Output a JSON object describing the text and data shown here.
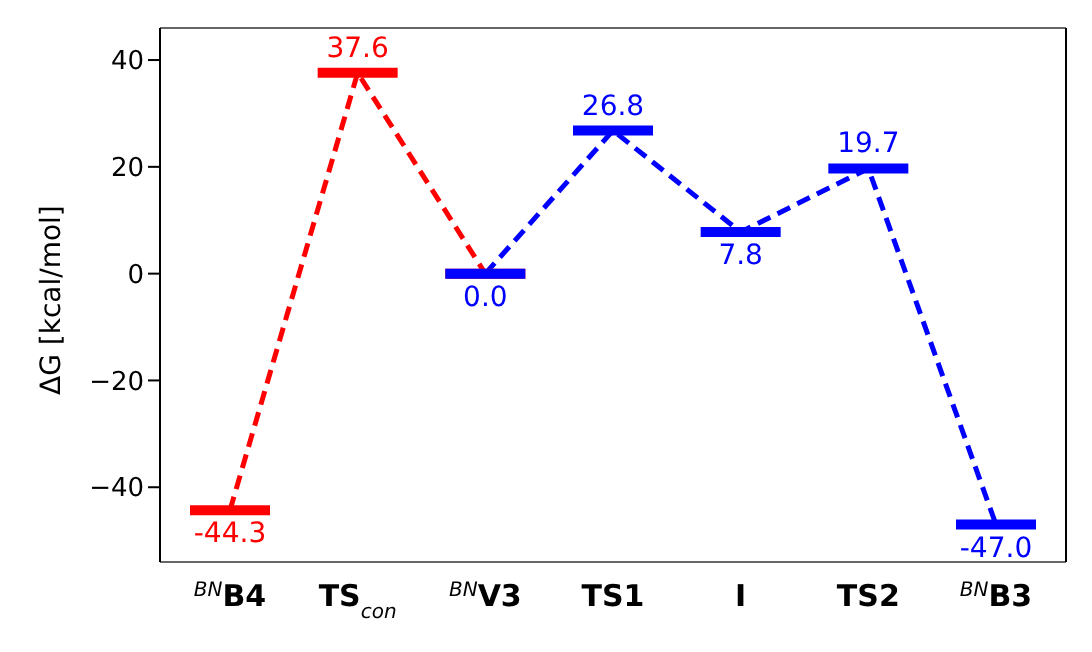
{
  "chart_data": {
    "type": "line",
    "ylabel": "ΔG [kcal/mol]",
    "categories": [
      "$^{BN}$B4",
      "TS$_{con}$",
      "$^{BN}$V3",
      "TS1",
      "I",
      "TS2",
      "$^{BN}$B3"
    ],
    "series": [
      {
        "color": "#ff0000",
        "values": [
          -44.3,
          37.6,
          0.0,
          null,
          null,
          null,
          null
        ],
        "value_labels": [
          "-44.3",
          "37.6",
          null,
          null,
          null,
          null,
          null
        ]
      },
      {
        "color": "#0000ff",
        "values": [
          null,
          null,
          0.0,
          26.8,
          7.8,
          19.7,
          -47.0
        ],
        "value_labels": [
          null,
          null,
          "0.0",
          "26.8",
          "7.8",
          "19.7",
          "-47.0"
        ]
      }
    ],
    "ylim": [
      -54,
      46
    ],
    "yticks": [
      -40,
      -20,
      0,
      20,
      40
    ],
    "line_style": "dashed",
    "grid": false,
    "legend": false
  }
}
